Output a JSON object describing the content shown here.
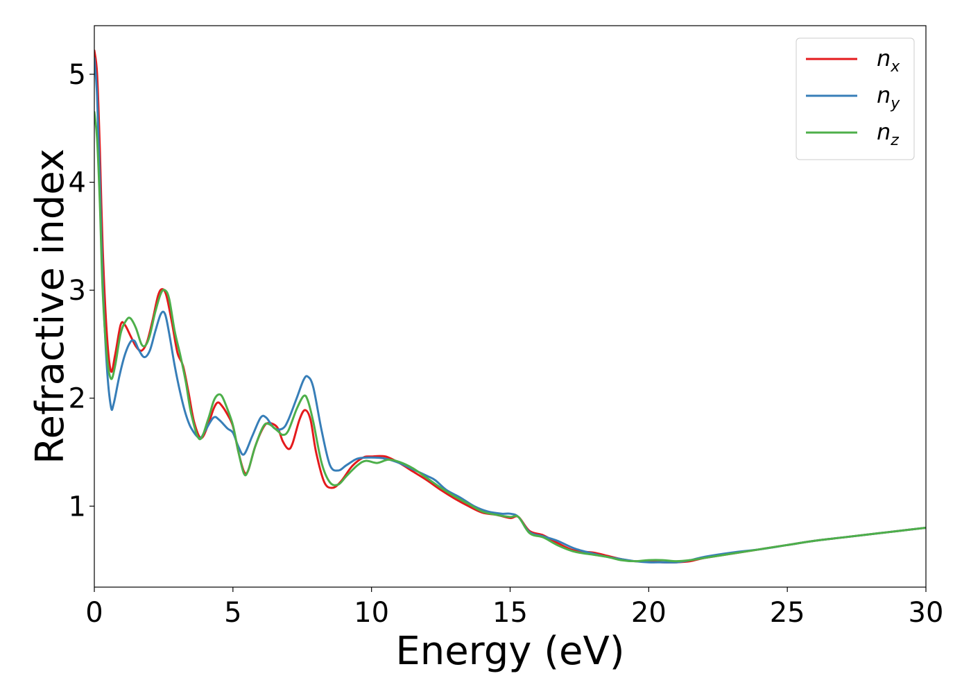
{
  "chart_data": {
    "type": "line",
    "xlabel": "Energy (eV)",
    "ylabel": "Refractive index",
    "xlim": [
      0,
      30
    ],
    "ylim": [
      0.25,
      5.45
    ],
    "xticks": [
      0,
      5,
      10,
      15,
      20,
      25,
      30
    ],
    "yticks": [
      1,
      2,
      3,
      4,
      5
    ],
    "grid": false,
    "legend_position": "top-right",
    "series": [
      {
        "name": "n",
        "subscript": "x",
        "color": "#e41a1c",
        "points": [
          [
            0,
            5.22
          ],
          [
            0.1,
            5.0
          ],
          [
            0.2,
            4.3
          ],
          [
            0.3,
            3.4
          ],
          [
            0.45,
            2.6
          ],
          [
            0.6,
            2.25
          ],
          [
            0.75,
            2.4
          ],
          [
            0.95,
            2.68
          ],
          [
            1.1,
            2.68
          ],
          [
            1.3,
            2.58
          ],
          [
            1.5,
            2.48
          ],
          [
            1.7,
            2.44
          ],
          [
            1.9,
            2.52
          ],
          [
            2.1,
            2.72
          ],
          [
            2.3,
            2.95
          ],
          [
            2.45,
            3.01
          ],
          [
            2.6,
            2.95
          ],
          [
            2.8,
            2.7
          ],
          [
            3.0,
            2.42
          ],
          [
            3.2,
            2.3
          ],
          [
            3.4,
            2.05
          ],
          [
            3.6,
            1.78
          ],
          [
            3.85,
            1.63
          ],
          [
            4.1,
            1.75
          ],
          [
            4.3,
            1.9
          ],
          [
            4.45,
            1.96
          ],
          [
            4.6,
            1.93
          ],
          [
            4.8,
            1.85
          ],
          [
            5.0,
            1.74
          ],
          [
            5.2,
            1.5
          ],
          [
            5.4,
            1.32
          ],
          [
            5.55,
            1.33
          ],
          [
            5.8,
            1.55
          ],
          [
            6.1,
            1.73
          ],
          [
            6.3,
            1.77
          ],
          [
            6.6,
            1.73
          ],
          [
            6.8,
            1.6
          ],
          [
            7.0,
            1.53
          ],
          [
            7.15,
            1.58
          ],
          [
            7.4,
            1.8
          ],
          [
            7.6,
            1.89
          ],
          [
            7.8,
            1.8
          ],
          [
            8.0,
            1.5
          ],
          [
            8.3,
            1.22
          ],
          [
            8.6,
            1.17
          ],
          [
            8.9,
            1.23
          ],
          [
            9.3,
            1.37
          ],
          [
            9.7,
            1.45
          ],
          [
            10.0,
            1.46
          ],
          [
            10.5,
            1.46
          ],
          [
            11.0,
            1.4
          ],
          [
            11.5,
            1.32
          ],
          [
            12.0,
            1.24
          ],
          [
            12.5,
            1.15
          ],
          [
            13.0,
            1.07
          ],
          [
            13.5,
            1.0
          ],
          [
            14.0,
            0.94
          ],
          [
            14.5,
            0.92
          ],
          [
            15.0,
            0.89
          ],
          [
            15.3,
            0.9
          ],
          [
            15.7,
            0.77
          ],
          [
            16.2,
            0.73
          ],
          [
            16.7,
            0.66
          ],
          [
            17.3,
            0.59
          ],
          [
            18.0,
            0.57
          ],
          [
            18.5,
            0.54
          ],
          [
            19.0,
            0.51
          ],
          [
            19.5,
            0.49
          ],
          [
            20.0,
            0.49
          ],
          [
            20.5,
            0.48
          ],
          [
            21.0,
            0.48
          ],
          [
            21.5,
            0.49
          ],
          [
            22.0,
            0.52
          ],
          [
            23.0,
            0.56
          ],
          [
            24.0,
            0.6
          ],
          [
            25.0,
            0.64
          ],
          [
            26.0,
            0.68
          ],
          [
            27.0,
            0.71
          ],
          [
            28.0,
            0.74
          ],
          [
            29.0,
            0.77
          ],
          [
            30.0,
            0.8
          ]
        ]
      },
      {
        "name": "n",
        "subscript": "y",
        "color": "#377eb8",
        "points": [
          [
            0,
            5.15
          ],
          [
            0.1,
            4.8
          ],
          [
            0.2,
            4.0
          ],
          [
            0.3,
            3.1
          ],
          [
            0.45,
            2.3
          ],
          [
            0.6,
            1.92
          ],
          [
            0.7,
            1.95
          ],
          [
            0.9,
            2.2
          ],
          [
            1.1,
            2.4
          ],
          [
            1.3,
            2.52
          ],
          [
            1.45,
            2.53
          ],
          [
            1.6,
            2.45
          ],
          [
            1.8,
            2.38
          ],
          [
            2.0,
            2.44
          ],
          [
            2.2,
            2.62
          ],
          [
            2.4,
            2.78
          ],
          [
            2.55,
            2.78
          ],
          [
            2.7,
            2.6
          ],
          [
            2.9,
            2.3
          ],
          [
            3.1,
            2.05
          ],
          [
            3.3,
            1.85
          ],
          [
            3.5,
            1.72
          ],
          [
            3.8,
            1.63
          ],
          [
            4.0,
            1.7
          ],
          [
            4.3,
            1.82
          ],
          [
            4.5,
            1.8
          ],
          [
            4.8,
            1.72
          ],
          [
            5.0,
            1.68
          ],
          [
            5.2,
            1.55
          ],
          [
            5.4,
            1.48
          ],
          [
            5.7,
            1.65
          ],
          [
            6.0,
            1.82
          ],
          [
            6.2,
            1.82
          ],
          [
            6.5,
            1.72
          ],
          [
            6.8,
            1.72
          ],
          [
            7.0,
            1.8
          ],
          [
            7.3,
            2.0
          ],
          [
            7.55,
            2.17
          ],
          [
            7.7,
            2.2
          ],
          [
            7.9,
            2.1
          ],
          [
            8.2,
            1.7
          ],
          [
            8.5,
            1.38
          ],
          [
            8.8,
            1.33
          ],
          [
            9.1,
            1.38
          ],
          [
            9.5,
            1.44
          ],
          [
            10.0,
            1.45
          ],
          [
            10.5,
            1.44
          ],
          [
            11.0,
            1.4
          ],
          [
            11.5,
            1.34
          ],
          [
            12.0,
            1.28
          ],
          [
            12.3,
            1.24
          ],
          [
            12.7,
            1.15
          ],
          [
            13.2,
            1.08
          ],
          [
            13.7,
            1.0
          ],
          [
            14.2,
            0.95
          ],
          [
            14.7,
            0.93
          ],
          [
            15.0,
            0.93
          ],
          [
            15.3,
            0.9
          ],
          [
            15.7,
            0.76
          ],
          [
            16.2,
            0.72
          ],
          [
            16.7,
            0.68
          ],
          [
            17.3,
            0.61
          ],
          [
            18.0,
            0.56
          ],
          [
            18.5,
            0.53
          ],
          [
            19.0,
            0.51
          ],
          [
            19.5,
            0.49
          ],
          [
            20.0,
            0.48
          ],
          [
            20.5,
            0.48
          ],
          [
            21.0,
            0.48
          ],
          [
            21.5,
            0.5
          ],
          [
            22.0,
            0.53
          ],
          [
            23.0,
            0.57
          ],
          [
            24.0,
            0.6
          ],
          [
            25.0,
            0.64
          ],
          [
            26.0,
            0.68
          ],
          [
            27.0,
            0.71
          ],
          [
            28.0,
            0.74
          ],
          [
            29.0,
            0.77
          ],
          [
            30.0,
            0.8
          ]
        ]
      },
      {
        "name": "n",
        "subscript": "z",
        "color": "#4daf4a",
        "points": [
          [
            0,
            4.65
          ],
          [
            0.1,
            4.4
          ],
          [
            0.2,
            3.8
          ],
          [
            0.3,
            3.0
          ],
          [
            0.45,
            2.4
          ],
          [
            0.6,
            2.18
          ],
          [
            0.75,
            2.3
          ],
          [
            0.95,
            2.6
          ],
          [
            1.15,
            2.72
          ],
          [
            1.3,
            2.74
          ],
          [
            1.5,
            2.65
          ],
          [
            1.7,
            2.5
          ],
          [
            1.85,
            2.49
          ],
          [
            2.0,
            2.58
          ],
          [
            2.2,
            2.8
          ],
          [
            2.4,
            2.97
          ],
          [
            2.55,
            3.0
          ],
          [
            2.7,
            2.92
          ],
          [
            2.9,
            2.62
          ],
          [
            3.1,
            2.4
          ],
          [
            3.3,
            2.15
          ],
          [
            3.5,
            1.85
          ],
          [
            3.8,
            1.62
          ],
          [
            4.1,
            1.8
          ],
          [
            4.3,
            1.97
          ],
          [
            4.45,
            2.03
          ],
          [
            4.6,
            2.02
          ],
          [
            4.8,
            1.9
          ],
          [
            5.0,
            1.75
          ],
          [
            5.2,
            1.5
          ],
          [
            5.4,
            1.3
          ],
          [
            5.55,
            1.33
          ],
          [
            5.8,
            1.55
          ],
          [
            6.1,
            1.74
          ],
          [
            6.3,
            1.76
          ],
          [
            6.6,
            1.7
          ],
          [
            6.8,
            1.66
          ],
          [
            7.0,
            1.7
          ],
          [
            7.3,
            1.9
          ],
          [
            7.55,
            2.02
          ],
          [
            7.7,
            1.98
          ],
          [
            7.9,
            1.78
          ],
          [
            8.2,
            1.4
          ],
          [
            8.5,
            1.22
          ],
          [
            8.8,
            1.2
          ],
          [
            9.1,
            1.28
          ],
          [
            9.5,
            1.38
          ],
          [
            9.8,
            1.42
          ],
          [
            10.2,
            1.4
          ],
          [
            10.6,
            1.43
          ],
          [
            11.0,
            1.41
          ],
          [
            11.5,
            1.35
          ],
          [
            12.0,
            1.26
          ],
          [
            12.5,
            1.17
          ],
          [
            13.0,
            1.09
          ],
          [
            13.5,
            1.02
          ],
          [
            14.0,
            0.95
          ],
          [
            14.5,
            0.92
          ],
          [
            15.0,
            0.9
          ],
          [
            15.3,
            0.9
          ],
          [
            15.7,
            0.75
          ],
          [
            16.2,
            0.71
          ],
          [
            16.7,
            0.64
          ],
          [
            17.3,
            0.58
          ],
          [
            18.0,
            0.55
          ],
          [
            18.5,
            0.53
          ],
          [
            19.0,
            0.5
          ],
          [
            19.5,
            0.49
          ],
          [
            20.0,
            0.5
          ],
          [
            20.5,
            0.5
          ],
          [
            21.0,
            0.49
          ],
          [
            21.5,
            0.5
          ],
          [
            22.0,
            0.52
          ],
          [
            23.0,
            0.56
          ],
          [
            24.0,
            0.6
          ],
          [
            25.0,
            0.64
          ],
          [
            26.0,
            0.68
          ],
          [
            27.0,
            0.71
          ],
          [
            28.0,
            0.74
          ],
          [
            29.0,
            0.77
          ],
          [
            30.0,
            0.8
          ]
        ]
      }
    ]
  }
}
